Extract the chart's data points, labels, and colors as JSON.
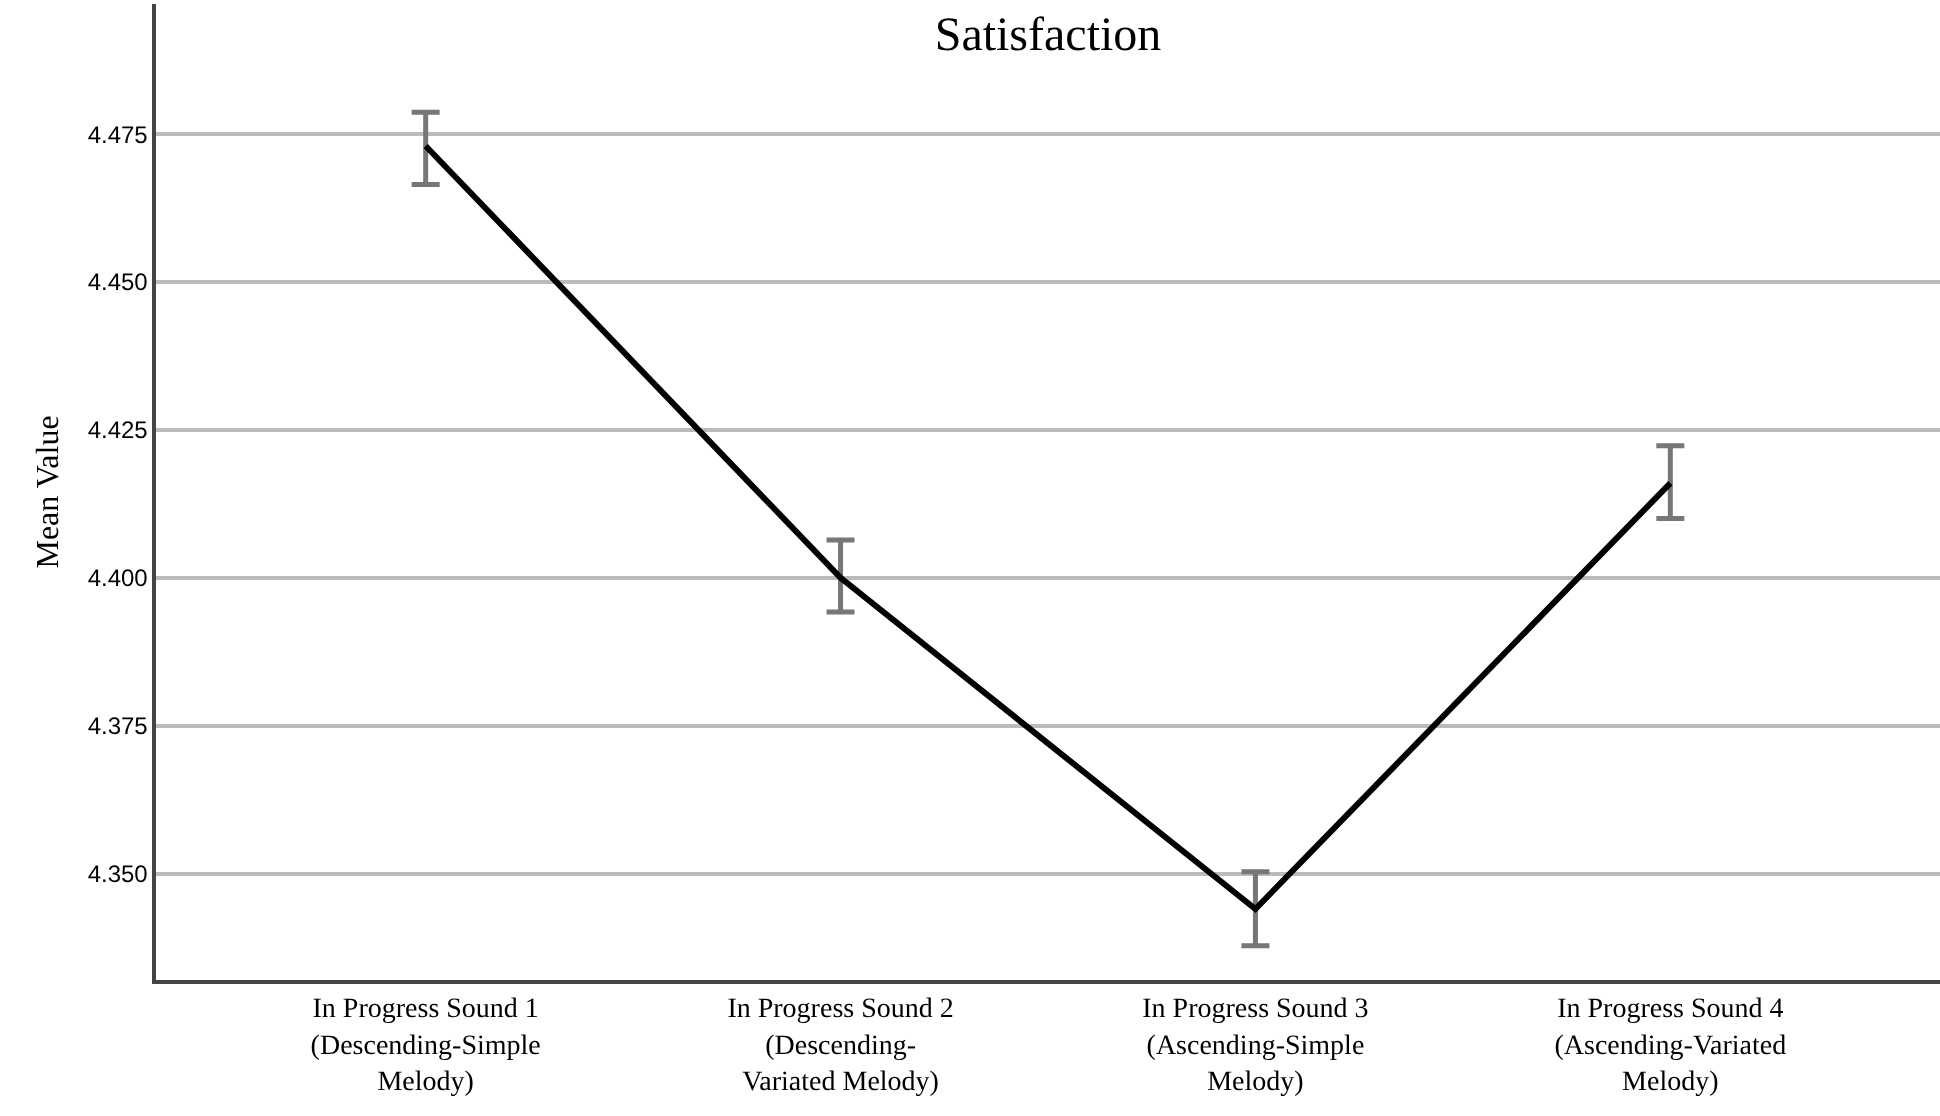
{
  "chart_data": {
    "type": "line",
    "title": "Satisfaction",
    "ylabel": "Mean Value",
    "categories": [
      "In Progress Sound 1\n(Descending-Simple\nMelody)",
      "In Progress Sound 2\n(Descending-\nVariated Melody)",
      "In Progress Sound 3\n(Ascending-Simple\nMelody)",
      "In Progress Sound 4\n(Ascending-Variated\nMelody)"
    ],
    "series": [
      {
        "color": "#000000",
        "values": [
          4.473,
          4.4,
          4.344,
          4.416
        ],
        "errors": [
          [
            4.4665,
            4.4787
          ],
          [
            4.3942,
            4.4064
          ],
          [
            4.3378,
            4.3503
          ],
          [
            4.41,
            4.4223
          ]
        ]
      }
    ],
    "ylim": [
      4.332,
      4.497
    ],
    "yticks": [
      {
        "value": 4.35,
        "label": "4.350"
      },
      4.375,
      {
        "value": 4.4,
        "label": "4.400"
      },
      4.425,
      {
        "value": 4.45,
        "label": "4.450"
      },
      4.475
    ],
    "grid": "y",
    "marker": "none",
    "line_style": "solid"
  }
}
